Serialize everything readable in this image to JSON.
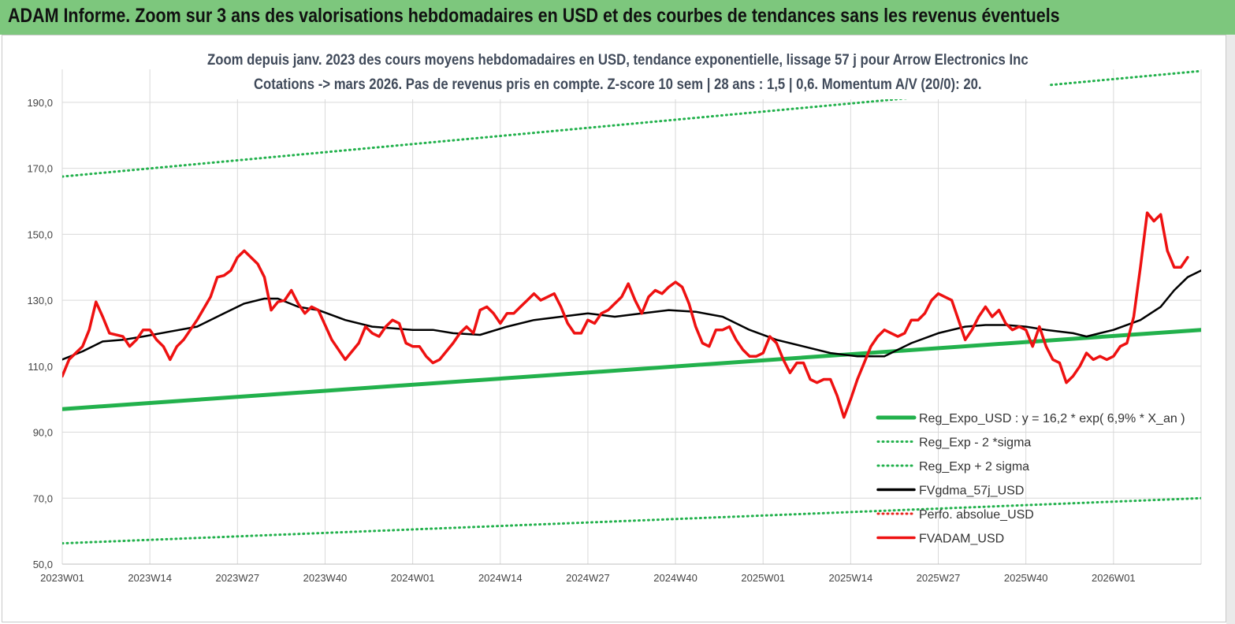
{
  "header": {
    "title": "ADAM Informe. Zoom sur 3 ans des valorisations hebdomadaires en USD et des courbes de tendances sans les revenus éventuels"
  },
  "chart_data": {
    "type": "line",
    "title_line1": "Zoom depuis janv. 2023 des cours moyens hebdomadaires en USD, tendance exponentielle, lissage 57 j pour Arrow Electronics Inc",
    "title_line2": "Cotations -> mars 2026. Pas de revenus pris en compte. Z-score 10 sem | 28 ans : 1,5 | 0,6. Momentum A/V (20/0): 20.",
    "ylim": [
      50,
      200
    ],
    "y_ticks": [
      "50,0",
      "70,0",
      "90,0",
      "110,0",
      "130,0",
      "150,0",
      "170,0",
      "190,0"
    ],
    "y_tick_values": [
      50,
      70,
      90,
      110,
      130,
      150,
      170,
      190
    ],
    "x_tick_labels": [
      "2023W01",
      "2023W14",
      "2023W27",
      "2023W40",
      "2024W01",
      "2024W14",
      "2024W27",
      "2024W40",
      "2025W01",
      "2025W14",
      "2025W27",
      "2025W40",
      "2026W01"
    ],
    "x_tick_weeks": [
      0,
      13,
      26,
      39,
      52,
      65,
      78,
      91,
      104,
      117,
      130,
      143,
      156
    ],
    "x_max_week": 169,
    "grid": "vertical and horizontal",
    "legend_position": "bottom-right",
    "series": [
      {
        "name": "Reg_Expo_USD : y = 16,2 * exp( 6,9% *  X_an )",
        "color": "#22b14c",
        "style": "solid-thick",
        "points": [
          [
            0,
            97
          ],
          [
            169,
            121
          ]
        ]
      },
      {
        "name": "Reg_Exp - 2 *sigma",
        "color": "#22b14c",
        "style": "dotted",
        "points": [
          [
            0,
            56.3
          ],
          [
            169,
            70
          ]
        ]
      },
      {
        "name": "Reg_Exp + 2 sigma",
        "color": "#22b14c",
        "style": "dotted",
        "points": [
          [
            0,
            167.5
          ],
          [
            169,
            199.5
          ]
        ]
      },
      {
        "name": "FVgdma_57j_USD",
        "color": "#000000",
        "style": "solid",
        "points": [
          [
            0,
            112
          ],
          [
            3,
            114.5
          ],
          [
            6,
            117.5
          ],
          [
            9,
            118
          ],
          [
            12,
            119
          ],
          [
            16,
            120.5
          ],
          [
            20,
            122
          ],
          [
            24,
            126
          ],
          [
            27,
            129
          ],
          [
            30,
            130.5
          ],
          [
            32,
            130.5
          ],
          [
            35,
            128
          ],
          [
            38,
            127
          ],
          [
            42,
            124
          ],
          [
            46,
            122
          ],
          [
            52,
            121
          ],
          [
            55,
            121
          ],
          [
            58,
            120
          ],
          [
            62,
            119.5
          ],
          [
            66,
            122
          ],
          [
            70,
            124
          ],
          [
            74,
            125
          ],
          [
            78,
            126
          ],
          [
            82,
            125
          ],
          [
            86,
            126
          ],
          [
            90,
            127
          ],
          [
            94,
            126.5
          ],
          [
            98,
            125
          ],
          [
            102,
            121
          ],
          [
            106,
            118
          ],
          [
            110,
            116
          ],
          [
            114,
            114
          ],
          [
            118,
            113
          ],
          [
            122,
            113
          ],
          [
            126,
            117
          ],
          [
            130,
            120
          ],
          [
            134,
            122
          ],
          [
            137,
            122.5
          ],
          [
            140,
            122.5
          ],
          [
            143,
            122
          ],
          [
            146,
            121
          ],
          [
            150,
            120
          ],
          [
            152,
            119
          ],
          [
            156,
            121
          ],
          [
            160,
            124
          ],
          [
            163,
            128
          ],
          [
            165,
            133
          ],
          [
            167,
            137
          ],
          [
            169,
            139
          ]
        ]
      },
      {
        "name": "Perfo. absolue_USD",
        "color": "#e8261e",
        "style": "dotted",
        "points": []
      },
      {
        "name": "FVADAM_USD",
        "color": "#ee1111",
        "style": "solid",
        "points": [
          [
            0,
            107
          ],
          [
            1,
            112
          ],
          [
            3,
            116
          ],
          [
            4,
            121
          ],
          [
            5,
            129.5
          ],
          [
            6,
            125
          ],
          [
            7,
            120
          ],
          [
            9,
            119
          ],
          [
            10,
            116
          ],
          [
            11,
            118
          ],
          [
            12,
            121
          ],
          [
            13,
            121
          ],
          [
            14,
            118
          ],
          [
            15,
            116
          ],
          [
            16,
            112
          ],
          [
            17,
            116
          ],
          [
            18,
            118
          ],
          [
            19,
            121
          ],
          [
            20,
            124
          ],
          [
            22,
            131
          ],
          [
            23,
            137
          ],
          [
            24,
            137.5
          ],
          [
            25,
            139
          ],
          [
            26,
            143
          ],
          [
            27,
            145
          ],
          [
            28,
            143
          ],
          [
            29,
            141
          ],
          [
            30,
            137
          ],
          [
            31,
            127
          ],
          [
            32,
            129.5
          ],
          [
            33,
            130
          ],
          [
            34,
            133
          ],
          [
            35,
            129
          ],
          [
            36,
            126
          ],
          [
            37,
            128
          ],
          [
            38,
            127
          ],
          [
            40,
            118
          ],
          [
            42,
            112
          ],
          [
            44,
            117
          ],
          [
            45,
            122
          ],
          [
            46,
            120
          ],
          [
            47,
            119
          ],
          [
            48,
            122
          ],
          [
            49,
            124
          ],
          [
            50,
            123
          ],
          [
            51,
            117
          ],
          [
            52,
            116
          ],
          [
            53,
            116
          ],
          [
            54,
            113
          ],
          [
            55,
            111
          ],
          [
            56,
            112
          ],
          [
            58,
            117
          ],
          [
            59,
            120
          ],
          [
            60,
            122
          ],
          [
            61,
            120
          ],
          [
            62,
            127
          ],
          [
            63,
            128
          ],
          [
            64,
            126
          ],
          [
            65,
            123
          ],
          [
            66,
            126
          ],
          [
            67,
            126
          ],
          [
            68,
            128
          ],
          [
            69,
            130
          ],
          [
            70,
            132
          ],
          [
            71,
            130
          ],
          [
            72,
            131
          ],
          [
            73,
            132
          ],
          [
            74,
            128
          ],
          [
            75,
            123
          ],
          [
            76,
            120
          ],
          [
            77,
            120
          ],
          [
            78,
            124
          ],
          [
            79,
            123
          ],
          [
            80,
            126
          ],
          [
            81,
            127
          ],
          [
            82,
            129
          ],
          [
            83,
            131
          ],
          [
            84,
            135
          ],
          [
            85,
            130
          ],
          [
            86,
            126
          ],
          [
            87,
            131
          ],
          [
            88,
            133
          ],
          [
            89,
            132
          ],
          [
            90,
            134
          ],
          [
            91,
            135.5
          ],
          [
            92,
            134
          ],
          [
            93,
            129
          ],
          [
            94,
            122
          ],
          [
            95,
            117
          ],
          [
            96,
            116
          ],
          [
            97,
            121
          ],
          [
            98,
            121
          ],
          [
            99,
            122
          ],
          [
            100,
            118
          ],
          [
            101,
            115
          ],
          [
            102,
            113
          ],
          [
            103,
            113
          ],
          [
            104,
            114
          ],
          [
            105,
            119
          ],
          [
            106,
            117
          ],
          [
            107,
            112
          ],
          [
            108,
            108
          ],
          [
            109,
            111
          ],
          [
            110,
            111
          ],
          [
            111,
            106
          ],
          [
            112,
            105
          ],
          [
            113,
            106
          ],
          [
            114,
            106
          ],
          [
            115,
            101
          ],
          [
            116,
            94.5
          ],
          [
            117,
            100
          ],
          [
            118,
            106
          ],
          [
            119,
            111
          ],
          [
            120,
            116
          ],
          [
            121,
            119
          ],
          [
            122,
            121
          ],
          [
            123,
            120
          ],
          [
            124,
            119
          ],
          [
            125,
            120
          ],
          [
            126,
            124
          ],
          [
            127,
            124
          ],
          [
            128,
            126
          ],
          [
            129,
            130
          ],
          [
            130,
            132
          ],
          [
            131,
            131
          ],
          [
            132,
            130
          ],
          [
            133,
            124
          ],
          [
            134,
            118
          ],
          [
            135,
            121
          ],
          [
            136,
            125
          ],
          [
            137,
            128
          ],
          [
            138,
            125
          ],
          [
            139,
            127
          ],
          [
            140,
            123
          ],
          [
            141,
            121
          ],
          [
            142,
            122
          ],
          [
            143,
            121
          ],
          [
            144,
            116
          ],
          [
            145,
            122
          ],
          [
            146,
            116
          ],
          [
            147,
            112
          ],
          [
            148,
            111
          ],
          [
            149,
            105
          ],
          [
            150,
            107
          ],
          [
            151,
            110
          ],
          [
            152,
            114
          ],
          [
            153,
            112
          ],
          [
            154,
            113
          ],
          [
            155,
            112
          ],
          [
            156,
            113
          ],
          [
            157,
            116
          ],
          [
            158,
            117
          ],
          [
            159,
            125
          ],
          [
            160,
            140
          ],
          [
            161,
            156.5
          ],
          [
            162,
            154
          ],
          [
            163,
            156
          ],
          [
            164,
            145
          ],
          [
            165,
            140
          ],
          [
            166,
            140
          ],
          [
            167,
            143
          ]
        ]
      }
    ]
  }
}
